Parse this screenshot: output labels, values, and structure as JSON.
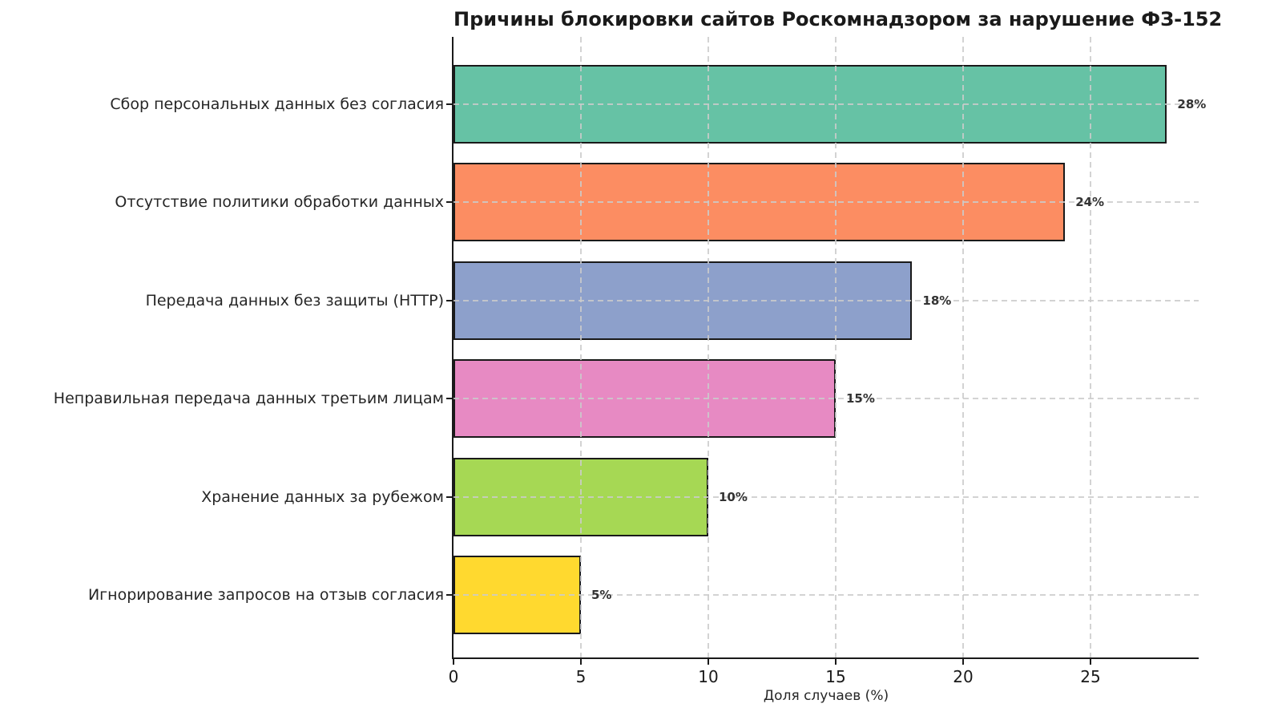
{
  "chart_data": {
    "type": "bar",
    "orientation": "horizontal",
    "title": "Причины блокировки сайтов Роскомнадзором за нарушение ФЗ-152",
    "xlabel": "Доля случаев (%)",
    "ylabel": "",
    "categories": [
      "Сбор персональных данных без согласия",
      "Отсутствие политики обработки данных",
      "Передача данных без защиты (HTTP)",
      "Неправильная передача данных третьим лицам",
      "Хранение данных за рубежом",
      "Игнорирование запросов на отзыв согласия"
    ],
    "values": [
      28,
      24,
      18,
      15,
      10,
      5
    ],
    "value_labels": [
      "28%",
      "24%",
      "18%",
      "15%",
      "10%",
      "5%"
    ],
    "bar_colors": [
      "#66c2a5",
      "#fc8d62",
      "#8da0cb",
      "#e78ac3",
      "#a6d854",
      "#ffd92f"
    ],
    "bar_edge_color": "#1a1a1a",
    "x_ticks": [
      0,
      5,
      10,
      15,
      20,
      25
    ],
    "xlim": [
      0,
      29.3
    ],
    "grid": true,
    "grid_style": "dashed",
    "grid_color": "#cbcbcb",
    "legend": false,
    "background": "#ffffff"
  }
}
